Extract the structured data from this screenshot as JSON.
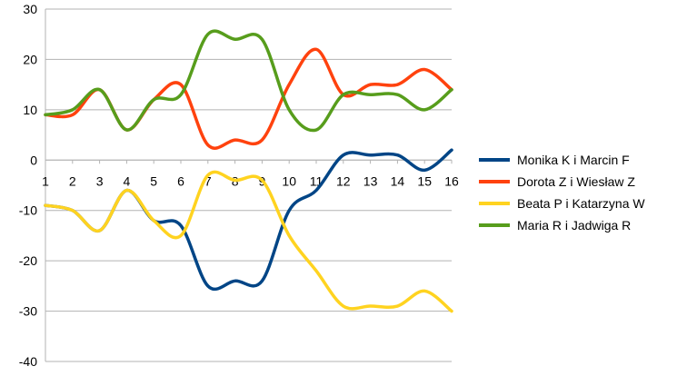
{
  "chart_data": {
    "type": "line",
    "x": [
      1,
      2,
      3,
      4,
      5,
      6,
      7,
      8,
      9,
      10,
      11,
      12,
      13,
      14,
      15,
      16
    ],
    "ylim": [
      -40,
      30
    ],
    "y_ticks": [
      -40,
      -30,
      -20,
      -10,
      0,
      10,
      20,
      30
    ],
    "x_ticks": [
      1,
      2,
      3,
      4,
      5,
      6,
      7,
      8,
      9,
      10,
      11,
      12,
      13,
      14,
      15,
      16
    ],
    "grid": "horizontal",
    "legend_position": "right",
    "smoothed": true,
    "series": [
      {
        "name": "Monika K i Marcin F",
        "color": "#004586",
        "values": [
          -9,
          -10,
          -14,
          -6,
          -12,
          -13,
          -25,
          -24,
          -24,
          -10,
          -6,
          1,
          1,
          1,
          -2,
          2
        ]
      },
      {
        "name": "Dorota Z i Wiesław Z",
        "color": "#ff420e",
        "values": [
          9,
          9,
          14,
          6,
          12,
          15,
          3,
          4,
          4,
          15,
          22,
          13,
          15,
          15,
          18,
          14
        ]
      },
      {
        "name": "Beata P i Katarzyna W",
        "color": "#ffd320",
        "values": [
          -9,
          -10,
          -14,
          -6,
          -12,
          -15,
          -3,
          -4,
          -4,
          -15,
          -22,
          -29,
          -29,
          -29,
          -26,
          -30
        ]
      },
      {
        "name": "Maria R i Jadwiga R",
        "color": "#579d1c",
        "values": [
          9,
          10,
          14,
          6,
          12,
          13,
          25,
          24,
          24,
          10,
          6,
          13,
          13,
          13,
          10,
          14
        ]
      }
    ]
  }
}
